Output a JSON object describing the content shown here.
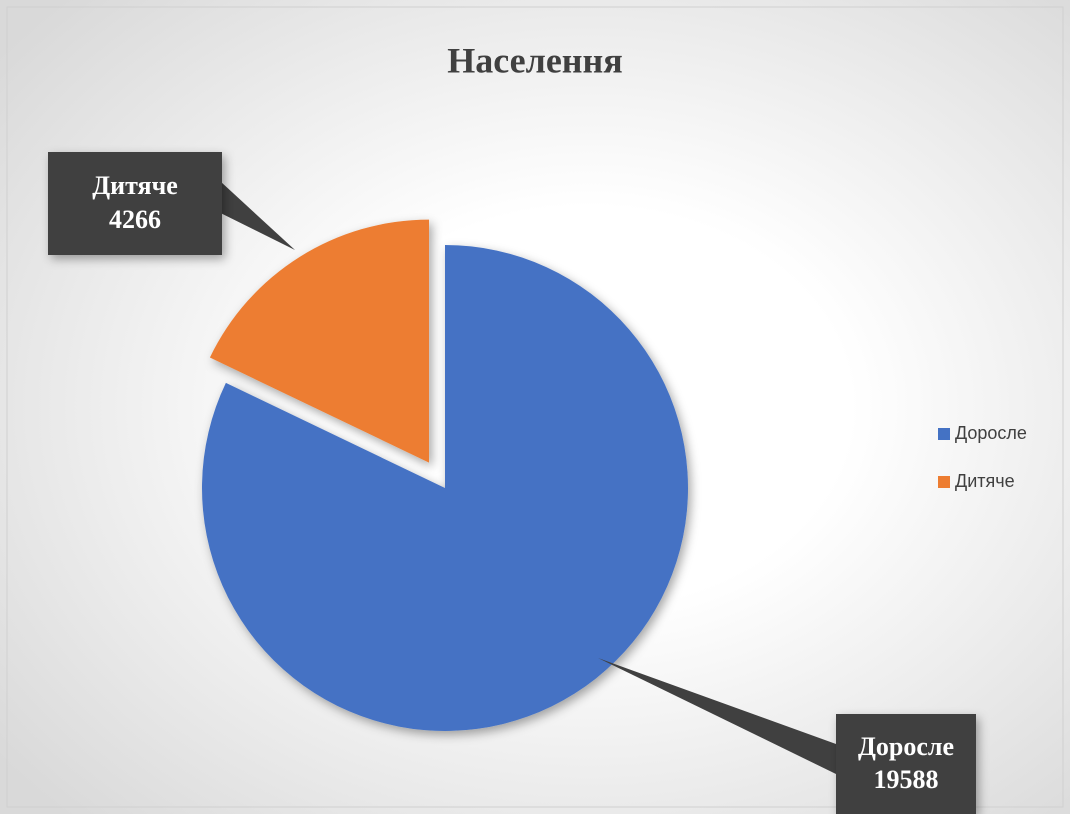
{
  "chart_data": {
    "type": "pie",
    "title": "Населення",
    "categories": [
      "Доросле",
      "Дитяче"
    ],
    "values": [
      19588,
      4266
    ],
    "colors": [
      "#4472c4",
      "#ed7d31"
    ],
    "legend": "right"
  }
}
